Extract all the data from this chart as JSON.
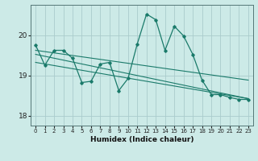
{
  "xlabel": "Humidex (Indice chaleur)",
  "bg_color": "#cceae7",
  "grid_color": "#aacccc",
  "line_color": "#1a7a6a",
  "x_values": [
    0,
    1,
    2,
    3,
    4,
    5,
    6,
    7,
    8,
    9,
    10,
    11,
    12,
    13,
    14,
    15,
    16,
    17,
    18,
    19,
    20,
    21,
    22,
    23
  ],
  "series1": [
    19.75,
    19.25,
    19.62,
    19.62,
    19.42,
    18.82,
    18.85,
    19.28,
    19.32,
    18.62,
    18.92,
    19.78,
    20.52,
    20.38,
    19.62,
    20.22,
    19.98,
    19.52,
    18.88,
    18.52,
    18.52,
    18.45,
    18.4,
    18.4
  ],
  "trend1_x": [
    0,
    23
  ],
  "trend1_y": [
    19.62,
    18.88
  ],
  "trend2_x": [
    0,
    23
  ],
  "trend2_y": [
    19.52,
    18.42
  ],
  "trend3_x": [
    0,
    23
  ],
  "trend3_y": [
    19.32,
    18.42
  ],
  "ylim": [
    17.75,
    20.75
  ],
  "yticks": [
    18,
    19,
    20
  ],
  "xlim": [
    -0.5,
    23.5
  ],
  "marker_size": 2.0
}
